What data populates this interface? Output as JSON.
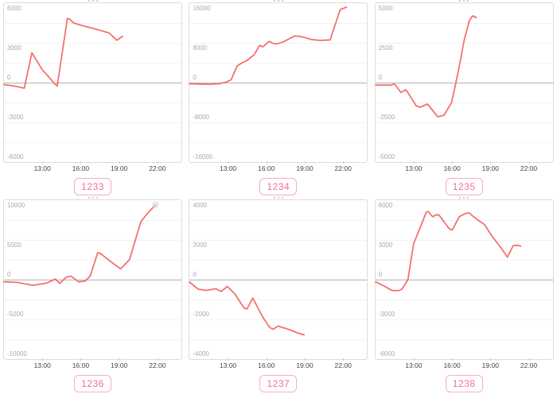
{
  "colors": {
    "line": "#f4716c",
    "end_marker": "#d9d9d9",
    "badge_text": "#ee7095",
    "badge_border": "#f7adc4",
    "zero_line": "#b2b2b2",
    "grid_line": "#f3f3f3",
    "box_border": "#dcdcdc",
    "y_label": "#a9a9a9",
    "x_label": "#454545",
    "tick": "#c9c9c9"
  },
  "x_axis": {
    "hours_range": [
      10,
      24
    ],
    "tick_labels": [
      "13:00",
      "16:00",
      "19:00",
      "22:00"
    ],
    "tick_hours": [
      13,
      16,
      19,
      22
    ]
  },
  "chart_data": [
    {
      "type": "line",
      "title": "1233",
      "ylim": [
        -6000,
        6000
      ],
      "yticks": [
        "6000",
        "3000",
        "0",
        "-3000",
        "-6000"
      ],
      "x": [
        10,
        10.8,
        11.6,
        12.2,
        13.0,
        13.7,
        14.0,
        14.2,
        15.0,
        15.2,
        15.5,
        16.2,
        17.2,
        18.3,
        18.9,
        19.35
      ],
      "y": [
        -150,
        -250,
        -420,
        2250,
        1000,
        250,
        -100,
        -250,
        4850,
        4780,
        4500,
        4300,
        4050,
        3750,
        3200,
        3500
      ],
      "end_marker": false
    },
    {
      "type": "line",
      "title": "1234",
      "ylim": [
        -16000,
        16000
      ],
      "yticks": [
        "16000",
        "8000",
        "0",
        "-8000",
        "-16000"
      ],
      "x": [
        10,
        10.7,
        11.5,
        12.3,
        12.9,
        13.3,
        13.75,
        14.1,
        14.5,
        15.1,
        15.55,
        15.8,
        16.3,
        16.6,
        16.9,
        17.4,
        18.3,
        18.8,
        19.6,
        20.3,
        21.1,
        21.9,
        22.4
      ],
      "y": [
        -220,
        -290,
        -330,
        -240,
        100,
        600,
        3300,
        3900,
        4400,
        5600,
        7500,
        7200,
        8300,
        7900,
        7800,
        8200,
        9400,
        9300,
        8700,
        8500,
        8600,
        14700,
        15200
      ],
      "end_marker": false
    },
    {
      "type": "line",
      "title": "1235",
      "ylim": [
        -5000,
        5000
      ],
      "yticks": [
        "5000",
        "2500",
        "0",
        "-2500",
        "-5000"
      ],
      "x": [
        10,
        11.2,
        11.5,
        12.0,
        12.4,
        13.2,
        13.5,
        14.1,
        14.9,
        15.4,
        16.0,
        16.5,
        17.0,
        17.4,
        17.65,
        17.95
      ],
      "y": [
        -150,
        -160,
        -80,
        -620,
        -450,
        -1450,
        -1550,
        -1350,
        -2150,
        -2050,
        -1250,
        600,
        2700,
        3900,
        4200,
        4100
      ],
      "end_marker": false
    },
    {
      "type": "line",
      "title": "1236",
      "ylim": [
        -10000,
        10000
      ],
      "yticks": [
        "10000",
        "5000",
        "0",
        "-5000",
        "-10000"
      ],
      "x": [
        10,
        11.0,
        12.3,
        13.4,
        14.05,
        14.4,
        14.9,
        15.3,
        15.9,
        16.4,
        16.8,
        17.4,
        17.6,
        18.4,
        19.2,
        19.9,
        20.8,
        21.3,
        21.95
      ],
      "y": [
        -280,
        -340,
        -720,
        -420,
        80,
        -480,
        300,
        420,
        -280,
        -180,
        450,
        3400,
        3300,
        2300,
        1350,
        2500,
        7300,
        8300,
        9400
      ],
      "end_marker": true
    },
    {
      "type": "line",
      "title": "1237",
      "ylim": [
        -4000,
        4000
      ],
      "yticks": [
        "4000",
        "2000",
        "0",
        "-2000",
        "-4000"
      ],
      "x": [
        10,
        10.7,
        11.3,
        12.1,
        12.5,
        13.0,
        13.6,
        14.3,
        14.55,
        15.0,
        15.8,
        16.35,
        16.6,
        17.0,
        17.9,
        18.6,
        19.05
      ],
      "y": [
        -120,
        -480,
        -540,
        -460,
        -600,
        -340,
        -730,
        -1420,
        -1480,
        -930,
        -1900,
        -2420,
        -2500,
        -2340,
        -2520,
        -2700,
        -2780
      ],
      "end_marker": false
    },
    {
      "type": "line",
      "title": "1238",
      "ylim": [
        -6000,
        6000
      ],
      "yticks": [
        "6000",
        "3000",
        "0",
        "-3000",
        "-6000"
      ],
      "x": [
        10,
        10.7,
        11.3,
        11.8,
        12.1,
        12.55,
        13.0,
        13.5,
        14.0,
        14.15,
        14.5,
        14.8,
        15.0,
        15.8,
        16.05,
        16.6,
        17.1,
        17.35,
        18.0,
        18.6,
        19.2,
        19.9,
        20.4,
        20.85,
        21.2,
        21.45
      ],
      "y": [
        -170,
        -500,
        -820,
        -840,
        -700,
        0,
        2700,
        3900,
        5100,
        5150,
        4750,
        4900,
        4880,
        3850,
        3750,
        4750,
        5000,
        5050,
        4550,
        4150,
        3250,
        2400,
        1700,
        2550,
        2600,
        2520
      ],
      "end_marker": false
    }
  ]
}
